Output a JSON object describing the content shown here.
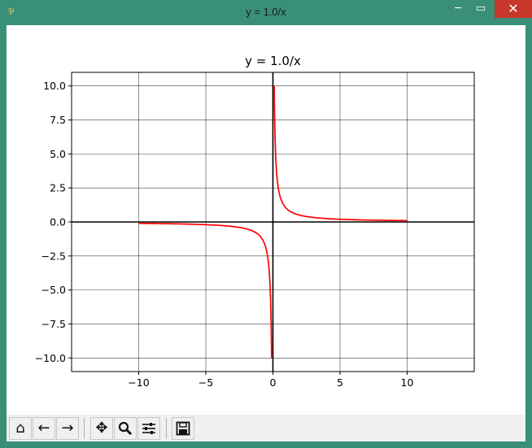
{
  "window": {
    "title": "y = 1.0/x",
    "icon": "app-icon",
    "controls": [
      {
        "name": "minimize",
        "glyph": "─"
      },
      {
        "name": "maximize",
        "glyph": "▭"
      },
      {
        "name": "close",
        "glyph": "✕"
      }
    ]
  },
  "toolbar": {
    "buttons": [
      {
        "name": "home-icon",
        "glyph": "⌂"
      },
      {
        "name": "back-icon",
        "glyph": "←"
      },
      {
        "name": "forward-icon",
        "glyph": "→"
      },
      {
        "name": "pan-icon",
        "glyph": "✥"
      },
      {
        "name": "zoom-icon",
        "glyph": "🔍"
      },
      {
        "name": "configure-subplots-icon",
        "glyph": "☰"
      },
      {
        "name": "save-icon",
        "glyph": "💾"
      }
    ]
  },
  "chart_data": {
    "type": "line",
    "title": "y = 1.0/x",
    "xlabel": "",
    "ylabel": "",
    "xlim": [
      -15,
      15
    ],
    "ylim": [
      -11,
      11
    ],
    "xticks": [
      -10,
      -5,
      0,
      5,
      10
    ],
    "xtick_labels": [
      "−10",
      "−5",
      "0",
      "5",
      "10"
    ],
    "yticks": [
      -10,
      -7.5,
      -5,
      -2.5,
      0,
      2.5,
      5,
      7.5,
      10
    ],
    "ytick_labels": [
      "−10.0",
      "−7.5",
      "−5.0",
      "−2.5",
      "0.0",
      "2.5",
      "5.0",
      "7.5",
      "10.0"
    ],
    "grid": true,
    "axis_lines": {
      "x": 0,
      "y": 0,
      "color": "#000000"
    },
    "series": [
      {
        "color": "#ff0000",
        "function": "1/x",
        "x_range": [
          -10,
          -0.1
        ]
      },
      {
        "color": "#ff0000",
        "function": "1/x",
        "x_range": [
          0.1,
          10
        ]
      }
    ]
  }
}
